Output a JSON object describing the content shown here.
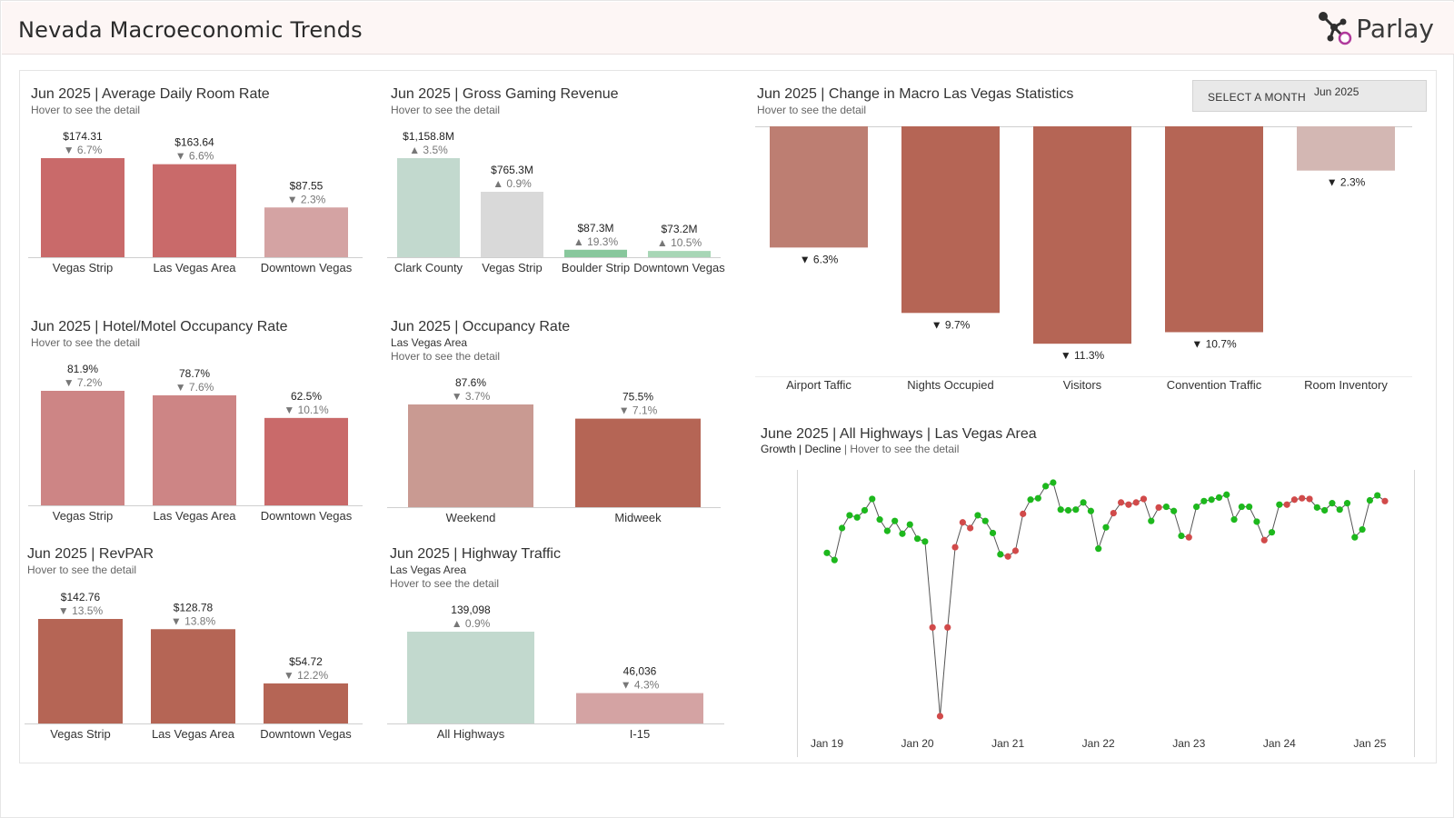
{
  "header": {
    "title": "Nevada Macroeconomic Trends",
    "brand": "Parlay"
  },
  "colors": {
    "red_strong": "#c96a6a",
    "red_mid": "#cd8585",
    "red_light": "#d4a3a3",
    "brick": "#b56555",
    "brick_light": "#c58e86",
    "rose": "#c99a92",
    "green_light": "#c2d9ce",
    "green_mid": "#88c79c",
    "grey_light": "#d9d9d9",
    "growth": "#1db81d",
    "decline": "#d14a4a"
  },
  "panels": {
    "adr": {
      "title": "Jun 2025 | Average Daily Room Rate",
      "hint": "Hover to see the detail",
      "chart_data": {
        "type": "bar",
        "categories": [
          "Vegas Strip",
          "Las Vegas Area",
          "Downtown Vegas"
        ],
        "values": [
          174.31,
          163.64,
          87.55
        ],
        "value_labels": [
          "$174.31",
          "$163.64",
          "$87.55"
        ],
        "change_labels": [
          "▼ 6.7%",
          "▼ 6.6%",
          "▼ 2.3%"
        ],
        "colors": [
          "#c96a6a",
          "#c96a6a",
          "#d4a3a3"
        ],
        "ylim": [
          0,
          174.31
        ]
      }
    },
    "ggr": {
      "title": "Jun 2025 | Gross Gaming Revenue",
      "hint": "Hover to see the detail",
      "chart_data": {
        "type": "bar",
        "categories": [
          "Clark County",
          "Vegas Strip",
          "Boulder Strip",
          "Downtown Vegas"
        ],
        "values": [
          1158.8,
          765.3,
          87.3,
          73.2
        ],
        "value_labels": [
          "$1,158.8M",
          "$765.3M",
          "$87.3M",
          "$73.2M"
        ],
        "change_labels": [
          "▲ 3.5%",
          "▲ 0.9%",
          "▲ 19.3%",
          "▲ 10.5%"
        ],
        "colors": [
          "#c2d9ce",
          "#d9d9d9",
          "#88c79c",
          "#a8d6b6"
        ],
        "ylim": [
          0,
          1158.8
        ]
      }
    },
    "hotel_occ": {
      "title": "Jun 2025 | Hotel/Motel Occupancy Rate",
      "hint": "Hover to see the detail",
      "chart_data": {
        "type": "bar",
        "categories": [
          "Vegas Strip",
          "Las Vegas Area",
          "Downtown Vegas"
        ],
        "values": [
          81.9,
          78.7,
          62.5
        ],
        "value_labels": [
          "81.9%",
          "78.7%",
          "62.5%"
        ],
        "change_labels": [
          "▼ 7.2%",
          "▼ 7.6%",
          "▼ 10.1%"
        ],
        "colors": [
          "#cd8585",
          "#cd8585",
          "#c96a6a"
        ],
        "ylim": [
          0,
          81.9
        ]
      }
    },
    "occ": {
      "title": "Jun 2025 | Occupancy Rate",
      "subtitle": "Las Vegas Area",
      "hint": "Hover to see the detail",
      "chart_data": {
        "type": "bar",
        "categories": [
          "Weekend",
          "Midweek"
        ],
        "values": [
          87.6,
          75.5
        ],
        "value_labels": [
          "87.6%",
          "75.5%"
        ],
        "change_labels": [
          "▼ 3.7%",
          "▼ 7.1%"
        ],
        "colors": [
          "#c99a92",
          "#b56555"
        ],
        "ylim": [
          0,
          87.6
        ]
      }
    },
    "revpar": {
      "title": "Jun 2025 | RevPAR",
      "hint": "Hover to see the detail",
      "chart_data": {
        "type": "bar",
        "categories": [
          "Vegas Strip",
          "Las Vegas Area",
          "Downtown Vegas"
        ],
        "values": [
          142.76,
          128.78,
          54.72
        ],
        "value_labels": [
          "$142.76",
          "$128.78",
          "$54.72"
        ],
        "change_labels": [
          "▼ 13.5%",
          "▼ 13.8%",
          "▼ 12.2%"
        ],
        "colors": [
          "#b56555",
          "#b56555",
          "#b56555"
        ],
        "ylim": [
          0,
          142.76
        ]
      }
    },
    "highway": {
      "title": "Jun 2025 | Highway Traffic",
      "subtitle": "Las Vegas Area",
      "hint": "Hover to see the detail",
      "chart_data": {
        "type": "bar",
        "categories": [
          "All Highways",
          "I-15"
        ],
        "values": [
          139098,
          46036
        ],
        "value_labels": [
          "139,098",
          "46,036"
        ],
        "change_labels": [
          "▲ 0.9%",
          "▼ 4.3%"
        ],
        "colors": [
          "#c2d9ce",
          "#d4a3a3"
        ],
        "ylim": [
          0,
          139098
        ]
      }
    },
    "macro": {
      "title": "Jun 2025 | Change in Macro Las Vegas Statistics",
      "hint": "Hover to see the detail",
      "select_label": "SELECT A MONTH",
      "select_value": "Jun 2025",
      "chart_data": {
        "type": "bar",
        "categories": [
          "Airport Taffic",
          "Nights Occupied",
          "Visitors",
          "Convention Traffic",
          "Room Inventory"
        ],
        "values": [
          -6.3,
          -9.7,
          -11.3,
          -10.7,
          -2.3
        ],
        "change_labels": [
          "▼ 6.3%",
          "▼ 9.7%",
          "▼ 11.3%",
          "▼ 10.7%",
          "▼ 2.3%"
        ],
        "colors": [
          "#bd7e72",
          "#b56555",
          "#b56555",
          "#b56555",
          "#d3b7b3"
        ],
        "ylim": [
          -12,
          0
        ]
      }
    },
    "hwy_trend": {
      "title": "June 2025 | All Highways | Las Vegas Area",
      "legend_growth": "Growth",
      "legend_sep": " | ",
      "legend_decline": "Decline",
      "legend_sep2": " | ",
      "hint": "Hover to see the detail",
      "chart_data": {
        "type": "line",
        "x_tick_labels": [
          "Jan 19",
          "Jan 20",
          "Jan 21",
          "Jan 22",
          "Jan 23",
          "Jan 24",
          "Jan 25"
        ],
        "x_start": "2019-01",
        "x_end": "2025-06",
        "values": [
          6.35,
          6.25,
          6.7,
          6.88,
          6.85,
          6.95,
          7.11,
          6.82,
          6.66,
          6.8,
          6.62,
          6.75,
          6.55,
          6.51,
          5.3,
          4.05,
          5.3,
          6.43,
          6.78,
          6.7,
          6.88,
          6.8,
          6.63,
          6.33,
          6.3,
          6.38,
          6.9,
          7.1,
          7.12,
          7.29,
          7.34,
          6.96,
          6.95,
          6.96,
          7.06,
          6.94,
          6.41,
          6.71,
          6.91,
          7.06,
          7.03,
          7.06,
          7.11,
          6.8,
          6.99,
          7.0,
          6.94,
          6.59,
          6.57,
          7.0,
          7.08,
          7.1,
          7.13,
          7.17,
          6.82,
          7.0,
          7.0,
          6.79,
          6.53,
          6.64,
          7.03,
          7.03,
          7.1,
          7.12,
          7.11,
          6.99,
          6.95,
          7.05,
          6.96,
          7.05,
          6.57,
          6.68,
          7.09,
          7.16,
          7.08
        ],
        "trend": [
          "g",
          "g",
          "g",
          "g",
          "g",
          "g",
          "g",
          "g",
          "g",
          "g",
          "g",
          "g",
          "g",
          "g",
          "d",
          "d",
          "d",
          "d",
          "d",
          "d",
          "g",
          "g",
          "g",
          "g",
          "d",
          "d",
          "d",
          "g",
          "g",
          "g",
          "g",
          "g",
          "g",
          "g",
          "g",
          "g",
          "g",
          "g",
          "d",
          "d",
          "d",
          "d",
          "d",
          "g",
          "d",
          "g",
          "g",
          "g",
          "d",
          "g",
          "g",
          "g",
          "g",
          "g",
          "g",
          "g",
          "g",
          "g",
          "d",
          "g",
          "g",
          "d",
          "d",
          "d",
          "d",
          "g",
          "g",
          "g",
          "g",
          "g",
          "g",
          "g",
          "g",
          "g",
          "d"
        ]
      }
    }
  }
}
